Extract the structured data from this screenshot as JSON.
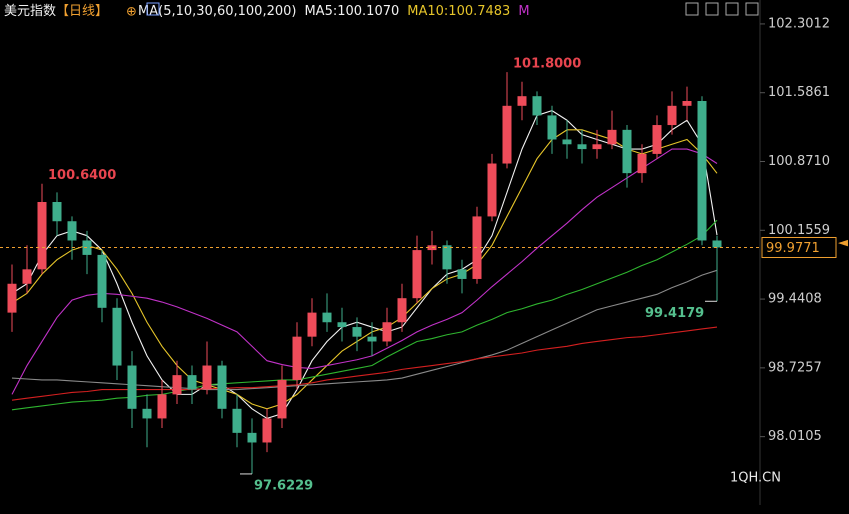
{
  "chart_data": {
    "type": "candlestick",
    "title": "美元指数",
    "period": "【日线】",
    "ma_legend": "MA(5,10,30,60,100,200)",
    "watermark": "1QH.CN",
    "up_color": "#ee4c5a",
    "down_color": "#3fae8c",
    "ylim": [
      97.3,
      102.55
    ],
    "yticks": [
      98.0105,
      98.7257,
      99.4408,
      100.1559,
      {
        "value": 100.871,
        "label": "100.8710"
      },
      101.5861,
      102.3012
    ],
    "last_price": {
      "value": 99.9771,
      "label": "99.9771",
      "color": "#f0a030"
    },
    "series": [
      {
        "open": [
          99.3,
          99.6,
          99.75,
          100.45,
          100.25,
          100.05,
          99.9,
          99.35,
          98.75,
          98.3,
          98.2,
          98.45,
          98.65,
          98.5,
          98.75,
          98.3,
          98.05,
          97.95,
          98.2,
          98.6,
          99.05,
          99.3,
          99.2,
          99.15,
          99.05,
          99.0,
          99.2,
          99.45,
          99.95,
          100.0,
          99.75,
          99.65,
          100.3,
          100.85,
          101.45,
          101.55,
          101.35,
          101.1,
          101.05,
          101.0,
          101.05,
          101.2,
          100.75,
          100.95,
          101.25,
          101.45,
          101.5,
          100.05
        ],
        "high": [
          99.8,
          100.0,
          100.64,
          100.55,
          100.3,
          100.15,
          99.95,
          99.45,
          98.9,
          98.45,
          98.6,
          98.8,
          98.75,
          99.0,
          98.8,
          98.45,
          98.2,
          98.3,
          98.75,
          99.2,
          99.45,
          99.5,
          99.35,
          99.25,
          99.2,
          99.35,
          99.6,
          100.1,
          100.15,
          100.05,
          99.85,
          100.4,
          100.95,
          101.8,
          101.7,
          101.6,
          101.45,
          101.3,
          101.2,
          101.2,
          101.4,
          101.25,
          101.05,
          101.35,
          101.6,
          101.65,
          101.55,
          100.1
        ],
        "low": [
          99.1,
          99.5,
          99.7,
          100.1,
          99.85,
          99.7,
          99.2,
          98.6,
          98.1,
          97.9,
          98.1,
          98.35,
          98.35,
          98.45,
          98.2,
          97.9,
          97.6229,
          97.85,
          98.1,
          98.5,
          98.95,
          99.1,
          99.0,
          98.9,
          98.85,
          98.95,
          99.1,
          99.4,
          99.8,
          99.6,
          99.5,
          99.6,
          100.25,
          100.8,
          101.3,
          101.25,
          100.95,
          100.9,
          100.85,
          100.9,
          101.0,
          100.6,
          100.65,
          100.9,
          101.15,
          101.3,
          100.0,
          99.4179
        ],
        "close": [
          99.6,
          99.75,
          100.45,
          100.25,
          100.05,
          99.9,
          99.35,
          98.75,
          98.3,
          98.2,
          98.45,
          98.65,
          98.5,
          98.75,
          98.3,
          98.05,
          97.95,
          98.2,
          98.6,
          99.05,
          99.3,
          99.2,
          99.15,
          99.05,
          99.0,
          99.2,
          99.45,
          99.95,
          100.0,
          99.75,
          99.65,
          100.3,
          100.85,
          101.45,
          101.55,
          101.35,
          101.1,
          101.05,
          101.0,
          101.05,
          101.2,
          100.75,
          100.95,
          101.25,
          101.45,
          101.5,
          100.05,
          99.9771
        ],
        "high_labels": [
          null,
          null,
          "100.6400",
          null,
          null,
          null,
          null,
          null,
          null,
          null,
          null,
          null,
          null,
          null,
          null,
          null,
          null,
          null,
          null,
          null,
          null,
          null,
          null,
          null,
          null,
          null,
          null,
          null,
          null,
          null,
          null,
          null,
          null,
          "101.8000",
          null,
          null,
          null,
          null,
          null,
          null,
          null,
          null,
          null,
          null,
          null,
          null,
          null,
          null
        ],
        "low_labels": [
          null,
          null,
          null,
          null,
          null,
          null,
          null,
          null,
          null,
          null,
          null,
          null,
          null,
          null,
          null,
          null,
          "97.6229",
          null,
          null,
          null,
          null,
          null,
          null,
          null,
          null,
          null,
          null,
          null,
          null,
          null,
          null,
          null,
          null,
          null,
          null,
          null,
          null,
          null,
          null,
          null,
          null,
          null,
          null,
          null,
          null,
          null,
          null,
          "99.4179"
        ]
      }
    ],
    "high_label_color": "#e8454f",
    "low_label_color": "#55c08e",
    "ma_series": [
      {
        "name": "MA5:100.1070",
        "color": "#f2f2f2",
        "values": [
          99.5,
          99.6,
          99.9,
          100.1,
          100.15,
          100.1,
          99.95,
          99.6,
          99.2,
          98.85,
          98.6,
          98.45,
          98.45,
          98.55,
          98.55,
          98.45,
          98.3,
          98.2,
          98.25,
          98.5,
          98.8,
          99.0,
          99.15,
          99.2,
          99.15,
          99.1,
          99.15,
          99.35,
          99.55,
          99.7,
          99.75,
          99.85,
          100.1,
          100.55,
          101.0,
          101.35,
          101.4,
          101.3,
          101.15,
          101.1,
          101.05,
          101.0,
          101.0,
          101.05,
          101.2,
          101.3,
          101.05,
          100.107
        ]
      },
      {
        "name": "MA10:100.7483",
        "color": "#e6c52a",
        "values": [
          99.4,
          99.5,
          99.7,
          99.85,
          99.95,
          100.0,
          99.95,
          99.75,
          99.5,
          99.2,
          98.95,
          98.75,
          98.6,
          98.55,
          98.5,
          98.45,
          98.35,
          98.3,
          98.35,
          98.45,
          98.6,
          98.75,
          98.9,
          99.0,
          99.1,
          99.15,
          99.25,
          99.4,
          99.55,
          99.65,
          99.7,
          99.8,
          100.0,
          100.3,
          100.6,
          100.9,
          101.1,
          101.2,
          101.2,
          101.15,
          101.1,
          101.0,
          100.95,
          101.0,
          101.05,
          101.1,
          100.95,
          100.7483
        ]
      },
      {
        "name": "M",
        "color": "#c132c8",
        "values": [
          98.45,
          98.75,
          99.0,
          99.25,
          99.43,
          99.48,
          99.5,
          99.49,
          99.47,
          99.45,
          99.41,
          99.36,
          99.3,
          99.24,
          99.17,
          99.1,
          98.95,
          98.8,
          98.76,
          98.73,
          98.72,
          98.75,
          98.78,
          98.81,
          98.85,
          98.93,
          99.01,
          99.1,
          99.17,
          99.23,
          99.3,
          99.43,
          99.57,
          99.7,
          99.83,
          99.97,
          100.1,
          100.23,
          100.37,
          100.5,
          100.6,
          100.7,
          100.8,
          100.9,
          101.0,
          101.0,
          100.95,
          100.85
        ]
      },
      {
        "color": "#2fb52f",
        "values": [
          98.29,
          98.31,
          98.33,
          98.35,
          98.37,
          98.38,
          98.39,
          98.41,
          98.42,
          98.44,
          98.45,
          98.48,
          98.51,
          98.55,
          98.56,
          98.57,
          98.58,
          98.59,
          98.6,
          98.6,
          98.63,
          98.66,
          98.69,
          98.72,
          98.75,
          98.84,
          98.92,
          99.0,
          99.03,
          99.07,
          99.1,
          99.17,
          99.23,
          99.3,
          99.34,
          99.39,
          99.43,
          99.49,
          99.54,
          99.6,
          99.66,
          99.72,
          99.79,
          99.85,
          99.93,
          100.01,
          100.1,
          100.26
        ]
      },
      {
        "color": "#8a8a8a",
        "values": [
          98.62,
          98.61,
          98.6,
          98.6,
          98.59,
          98.58,
          98.57,
          98.56,
          98.55,
          98.54,
          98.53,
          98.52,
          98.51,
          98.5,
          98.5,
          98.5,
          98.51,
          98.52,
          98.53,
          98.54,
          98.55,
          98.56,
          98.57,
          98.58,
          98.59,
          98.6,
          98.62,
          98.66,
          98.7,
          98.74,
          98.78,
          98.82,
          98.86,
          98.91,
          98.98,
          99.05,
          99.12,
          99.19,
          99.26,
          99.33,
          99.37,
          99.41,
          99.45,
          99.49,
          99.56,
          99.62,
          99.69,
          99.74
        ]
      },
      {
        "color": "#d42020",
        "values": [
          98.39,
          98.41,
          98.43,
          98.45,
          98.47,
          98.48,
          98.5,
          98.5,
          98.5,
          98.5,
          98.5,
          98.5,
          98.5,
          98.51,
          98.51,
          98.52,
          98.52,
          98.53,
          98.54,
          98.55,
          98.57,
          98.6,
          98.62,
          98.64,
          98.66,
          98.68,
          98.71,
          98.73,
          98.75,
          98.77,
          98.79,
          98.82,
          98.84,
          98.86,
          98.88,
          98.91,
          98.93,
          98.95,
          98.98,
          99.0,
          99.02,
          99.04,
          99.05,
          99.07,
          99.09,
          99.11,
          99.13,
          99.15
        ]
      }
    ]
  }
}
